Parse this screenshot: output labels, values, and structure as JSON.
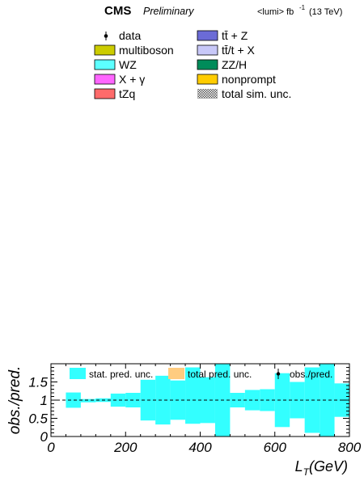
{
  "header": {
    "experiment": "CMS",
    "status": "Preliminary",
    "lumi": "<lumi> fb",
    "lumi_exp": "-1",
    "energy": "(13 TeV)"
  },
  "legend_top": [
    {
      "label": "data",
      "style": "marker",
      "color": "#000000"
    },
    {
      "label": "tt̄ + Z",
      "style": "box",
      "color": "#6b6bd6"
    },
    {
      "label": "multiboson",
      "style": "box",
      "color": "#cccc00"
    },
    {
      "label": "tt̄/t + X",
      "style": "box",
      "color": "#c8c8f8"
    },
    {
      "label": "WZ",
      "style": "box",
      "color": "#5cffff"
    },
    {
      "label": "ZZ/H",
      "style": "box",
      "color": "#008c5a"
    },
    {
      "label": "X + γ",
      "style": "box",
      "color": "#ff66ff"
    },
    {
      "label": "nonprompt",
      "style": "box",
      "color": "#ffcc00"
    },
    {
      "label": "tZq",
      "style": "box",
      "color": "#ff6b6b"
    },
    {
      "label": "total sim. unc.",
      "style": "hatch",
      "color": "#666666"
    }
  ],
  "chart_data": {
    "type": "area",
    "xlabel": "L_T (GeV)",
    "ylabel": "obs./pred.",
    "xlim": [
      0,
      800
    ],
    "ylim": [
      0,
      2
    ],
    "xticks": [
      0,
      200,
      400,
      600,
      800
    ],
    "yticks": [
      0,
      0.5,
      1,
      1.5
    ],
    "reference_line": 1,
    "legend": [
      {
        "label": "stat. pred. unc.",
        "color": "#33ffff"
      },
      {
        "label": "total pred. unc.",
        "color": "#ffcc80"
      },
      {
        "label": "obs./pred.",
        "color": "#000000"
      }
    ],
    "bins": [
      {
        "x0": 40,
        "x1": 80,
        "low": 0.79,
        "high": 1.21
      },
      {
        "x0": 80,
        "x1": 120,
        "low": 0.94,
        "high": 1.03
      },
      {
        "x0": 120,
        "x1": 160,
        "low": 0.95,
        "high": 1.05
      },
      {
        "x0": 160,
        "x1": 200,
        "low": 0.82,
        "high": 1.18
      },
      {
        "x0": 200,
        "x1": 240,
        "low": 0.8,
        "high": 1.2
      },
      {
        "x0": 240,
        "x1": 280,
        "low": 0.44,
        "high": 1.56
      },
      {
        "x0": 280,
        "x1": 320,
        "low": 0.33,
        "high": 1.67
      },
      {
        "x0": 320,
        "x1": 360,
        "low": 0.46,
        "high": 1.54
      },
      {
        "x0": 360,
        "x1": 400,
        "low": 0.35,
        "high": 1.9
      },
      {
        "x0": 400,
        "x1": 440,
        "low": 0.37,
        "high": 1.63
      },
      {
        "x0": 440,
        "x1": 480,
        "low": 0.0,
        "high": 2.0
      },
      {
        "x0": 480,
        "x1": 520,
        "low": 0.8,
        "high": 1.2
      },
      {
        "x0": 520,
        "x1": 560,
        "low": 0.72,
        "high": 1.28
      },
      {
        "x0": 560,
        "x1": 600,
        "low": 0.7,
        "high": 1.3
      },
      {
        "x0": 600,
        "x1": 640,
        "low": 0.26,
        "high": 1.74
      },
      {
        "x0": 640,
        "x1": 680,
        "low": 0.5,
        "high": 1.5
      },
      {
        "x0": 680,
        "x1": 720,
        "low": 0.1,
        "high": 1.9
      },
      {
        "x0": 720,
        "x1": 760,
        "low": 0.0,
        "high": 2.0
      },
      {
        "x0": 760,
        "x1": 800,
        "low": 0.54,
        "high": 1.46
      }
    ]
  }
}
